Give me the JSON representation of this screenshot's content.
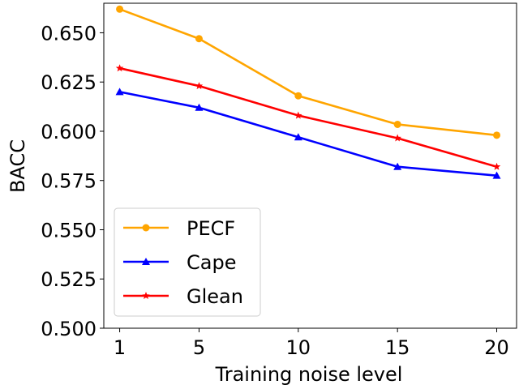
{
  "chart_data": {
    "type": "line",
    "title": "",
    "xlabel": "Training noise level",
    "ylabel": "BACC",
    "x": [
      1,
      5,
      10,
      15,
      20
    ],
    "xticks": [
      "1",
      "5",
      "10",
      "15",
      "20"
    ],
    "yticks": [
      "0.500",
      "0.525",
      "0.550",
      "0.575",
      "0.600",
      "0.625",
      "0.650"
    ],
    "ylim": [
      0.5,
      0.665
    ],
    "xlim": [
      0.2,
      21.0
    ],
    "grid": false,
    "legend_position": "lower-left",
    "series": [
      {
        "name": "PECF",
        "color": "#FFA500",
        "marker": "circle",
        "values": [
          0.662,
          0.647,
          0.618,
          0.6035,
          0.598
        ]
      },
      {
        "name": "Cape",
        "color": "#0000FF",
        "marker": "triangle",
        "values": [
          0.62,
          0.612,
          0.597,
          0.582,
          0.5775
        ]
      },
      {
        "name": "Glean",
        "color": "#FF0000",
        "marker": "star",
        "values": [
          0.632,
          0.623,
          0.608,
          0.5965,
          0.582
        ]
      }
    ]
  }
}
